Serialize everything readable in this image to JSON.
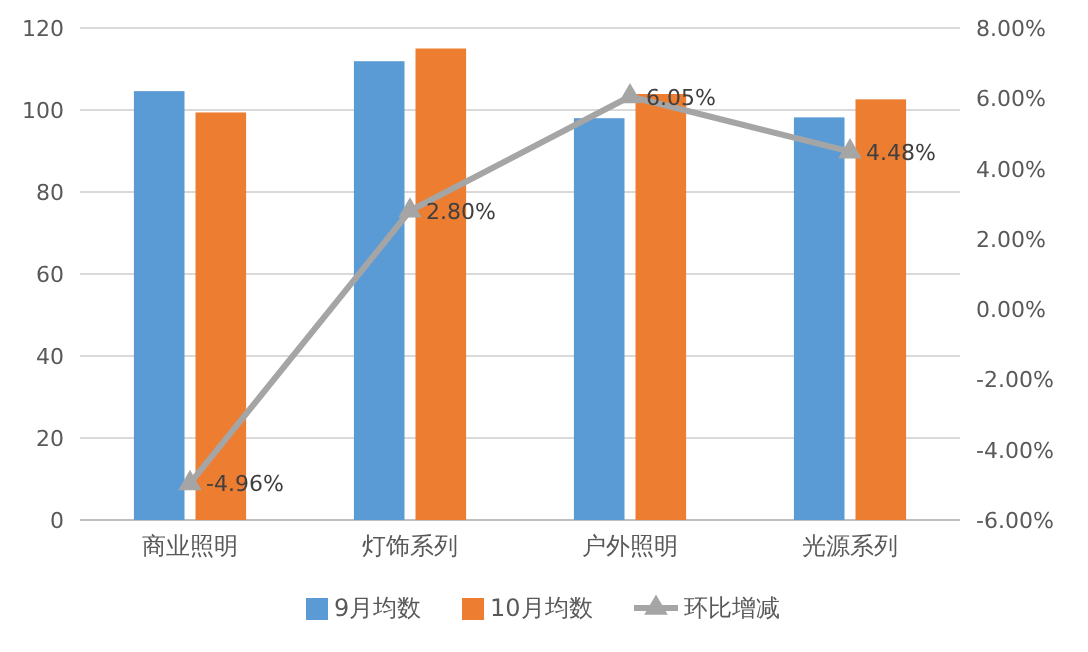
{
  "chart_data": {
    "type": "bar",
    "categories": [
      "商业照明",
      "灯饰系列",
      "户外照明",
      "光源系列"
    ],
    "series": [
      {
        "name": "9月均数",
        "color": "#5b9bd5",
        "values": [
          104.6,
          111.9,
          98.0,
          98.2
        ]
      },
      {
        "name": "10月均数",
        "color": "#ed7d31",
        "values": [
          99.4,
          115.0,
          103.9,
          102.6
        ]
      },
      {
        "name": "环比增减",
        "type": "line",
        "axis": "y2",
        "color": "#a5a5a5",
        "marker": "triangle",
        "values": [
          -4.96,
          2.8,
          6.05,
          4.48
        ],
        "value_labels": [
          "-4.96%",
          "2.80%",
          "6.05%",
          "4.48%"
        ]
      }
    ],
    "ylim": [
      0,
      120
    ],
    "yticks": [
      0,
      20,
      40,
      60,
      80,
      100,
      120
    ],
    "y2lim": [
      -6,
      8
    ],
    "y2ticks": [
      {
        "value": -6,
        "label": "-6.00%"
      },
      {
        "value": -4,
        "label": "-4.00%"
      },
      {
        "value": -2,
        "label": "-2.00%"
      },
      {
        "value": 0,
        "label": "0.00%"
      },
      {
        "value": 2,
        "label": "2.00%"
      },
      {
        "value": 4,
        "label": "4.00%"
      },
      {
        "value": 6,
        "label": "6.00%"
      },
      {
        "value": 8,
        "label": "8.00%"
      }
    ],
    "grid": "y",
    "legend": "bottom"
  }
}
